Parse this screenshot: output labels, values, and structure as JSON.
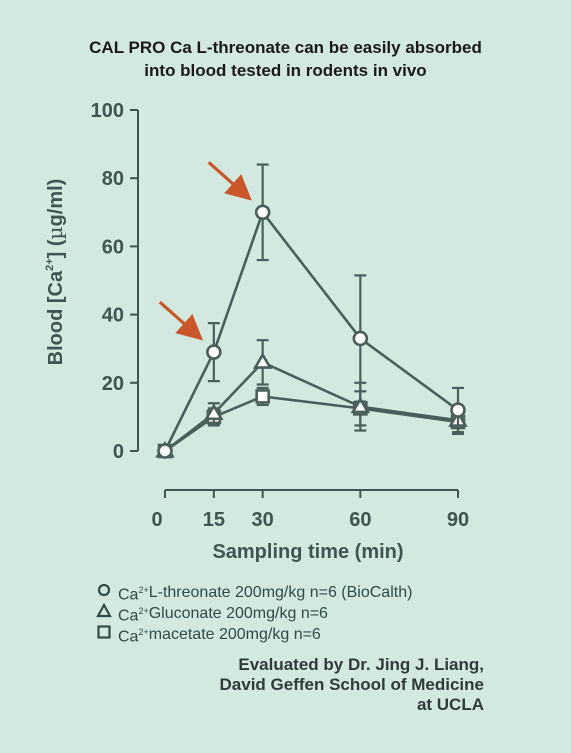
{
  "chart_data": {
    "type": "line",
    "title_lines": [
      "CAL PRO Ca L-threonate can be easily absorbed",
      "into blood tested in rodents in vivo"
    ],
    "xlabel": "Sampling time (min)",
    "ylabel": "Blood [Ca2+] (µg/ml)",
    "ylabel_parts": [
      "Blood [Ca",
      "2+",
      "] (",
      "µ",
      "g/ml)"
    ],
    "x_ticks": [
      0,
      15,
      30,
      60,
      90
    ],
    "y_ticks": [
      0,
      20,
      40,
      60,
      80,
      100
    ],
    "xlim": [
      0,
      90
    ],
    "ylim": [
      0,
      100
    ],
    "grid": false,
    "legend_position": "bottom",
    "series": [
      {
        "name": "Ca2+ L-threonate 200mg/kg n=6 (BioCalth)",
        "marker": "circle",
        "x": [
          0,
          15,
          30,
          60,
          90
        ],
        "values": [
          0,
          29,
          70,
          33,
          12
        ],
        "error": [
          0,
          8.5,
          14,
          18.5,
          6.5
        ]
      },
      {
        "name": "Ca2+ Gluconate 200mg/kg n=6",
        "marker": "triangle",
        "x": [
          0,
          15,
          30,
          60,
          90
        ],
        "values": [
          0,
          11,
          26,
          13,
          9
        ],
        "error": [
          0,
          3,
          6.5,
          7,
          4
        ]
      },
      {
        "name": "Ca2+ macetate 200mg/kg n=6",
        "marker": "square",
        "x": [
          0,
          15,
          30,
          60,
          90
        ],
        "values": [
          0,
          10,
          16,
          12.5,
          8.5
        ],
        "error": [
          0,
          2.5,
          2.5,
          5,
          3
        ]
      }
    ],
    "annotations": [
      {
        "type": "arrow",
        "target_series": 0,
        "target_index": 1
      },
      {
        "type": "arrow",
        "target_series": 0,
        "target_index": 2
      }
    ]
  },
  "legend": [
    {
      "prefix": "Ca",
      "sup": "2+",
      "text": " L-threonate 200mg/kg n=6 (BioCalth)",
      "marker": "circle"
    },
    {
      "prefix": "Ca",
      "sup": "2+",
      "text": " Gluconate 200mg/kg n=6",
      "marker": "triangle"
    },
    {
      "prefix": "Ca",
      "sup": "2+",
      "text": " macetate 200mg/kg n=6",
      "marker": "square"
    }
  ],
  "credit": [
    "Evaluated by Dr. Jing J. Liang,",
    "David Geffen School of Medicine",
    "at UCLA"
  ],
  "colors": {
    "background": "#d3e9e0",
    "series": "#4a5f5c",
    "axis": "#3e5552",
    "arrow": "#c9572a"
  }
}
